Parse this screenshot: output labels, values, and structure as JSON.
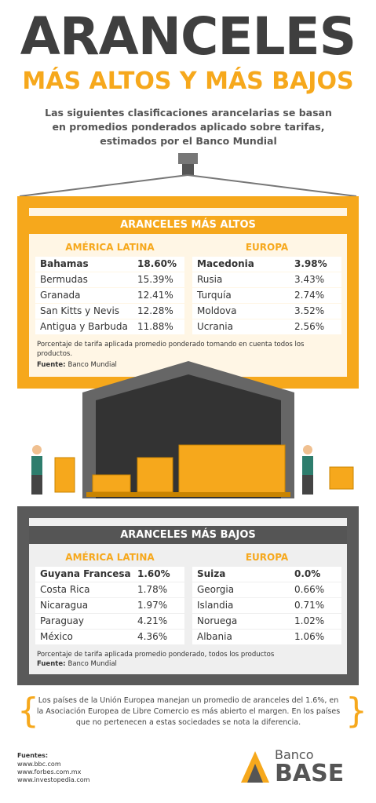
{
  "header": {
    "title": "ARANCELES",
    "subtitle": "MÁS ALTOS Y MÁS BAJOS",
    "intro": "Las siguientes clasificaciones arancelarias se basan en promedios ponderados aplicado sobre tarifas, estimados por el Banco Mundial"
  },
  "high": {
    "title": "ARANCELES MÁS ALTOS",
    "regions": [
      {
        "name": "AMÉRICA LATINA",
        "rows": [
          [
            "Bahamas",
            "18.60%"
          ],
          [
            "Bermudas",
            "15.39%"
          ],
          [
            "Granada",
            "12.41%"
          ],
          [
            "San Kitts y Nevis",
            "12.28%"
          ],
          [
            "Antigua y Barbuda",
            "11.88%"
          ]
        ]
      },
      {
        "name": "EUROPA",
        "rows": [
          [
            "Macedonia",
            "3.98%"
          ],
          [
            "Rusia",
            "3.43%"
          ],
          [
            "Turquía",
            "2.74%"
          ],
          [
            "Moldova",
            "3.52%"
          ],
          [
            "Ucrania",
            "2.56%"
          ]
        ]
      }
    ],
    "note": "Porcentaje de tarifa aplicada promedio ponderado tomando en cuenta todos los productos.",
    "source_label": "Fuente:",
    "source": "Banco Mundial"
  },
  "low": {
    "title": "ARANCELES MÁS BAJOS",
    "regions": [
      {
        "name": "AMÉRICA LATINA",
        "rows": [
          [
            "Guyana Francesa",
            "1.60%"
          ],
          [
            "Costa Rica",
            "1.78%"
          ],
          [
            "Nicaragua",
            "1.97%"
          ],
          [
            "Paraguay",
            "4.21%"
          ],
          [
            "México",
            "4.36%"
          ]
        ]
      },
      {
        "name": "EUROPA",
        "rows": [
          [
            "Suiza",
            "0.0%"
          ],
          [
            "Georgia",
            "0.66%"
          ],
          [
            "Islandia",
            "0.71%"
          ],
          [
            "Noruega",
            "1.02%"
          ],
          [
            "Albania",
            "1.06%"
          ]
        ]
      }
    ],
    "note": "Porcentaje de tarifa aplicada promedio ponderado, todos los productos",
    "source_label": "Fuente:",
    "source": "Banco Mundial"
  },
  "footer": {
    "note": "Los países de la Unión Europea manejan un promedio de aranceles del 1.6%, en la Asociación Europea de Libre Comercio es más abierto el margen. En los países que no pertenecen a estas sociedades se nota la diferencia.",
    "sources_title": "Fuentes:",
    "sources": [
      "www.bbc.com",
      "www.forbes.com.mx",
      "www.investopedia.com"
    ],
    "brand_top": "Banco",
    "brand_bottom": "BASE"
  }
}
